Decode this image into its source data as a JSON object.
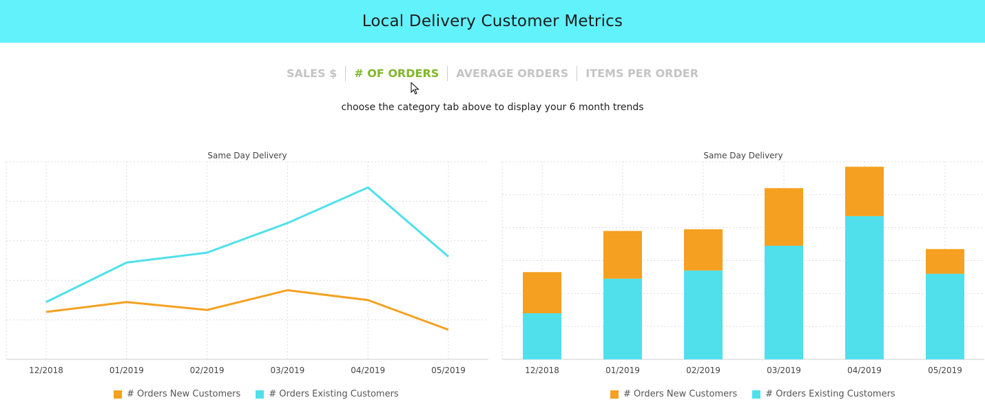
{
  "header": {
    "title": "Local Delivery Customer Metrics"
  },
  "tabs": [
    {
      "label": "SALES $",
      "active": false
    },
    {
      "label": "# OF ORDERS",
      "active": true
    },
    {
      "label": "AVERAGE ORDERS",
      "active": false
    },
    {
      "label": "ITEMS PER ORDER",
      "active": false
    }
  ],
  "hint": "choose the category tab above to display your 6 month trends",
  "colors": {
    "new": "#f5a020",
    "existing": "#4fe0ec",
    "active_tab": "#7fb82a",
    "header_bg": "#62f2fc"
  },
  "icons": {
    "cursor": "mouse-pointer-icon"
  },
  "chart_data": [
    {
      "type": "line",
      "title": "Same Day Delivery",
      "categories": [
        "12/2018",
        "01/2019",
        "02/2019",
        "03/2019",
        "04/2019",
        "05/2019"
      ],
      "series": [
        {
          "name": "# Orders New Customers",
          "values": [
            24,
            29,
            25,
            35,
            30,
            15
          ]
        },
        {
          "name": "# Orders Existing Customers",
          "values": [
            29,
            49,
            54,
            69,
            87,
            52
          ]
        }
      ],
      "ylim": [
        0,
        100
      ],
      "xlabel": "",
      "ylabel": "",
      "grid": true,
      "legend": "bottom"
    },
    {
      "type": "bar",
      "stacked": true,
      "title": "Same Day Delivery",
      "categories": [
        "12/2018",
        "01/2019",
        "02/2019",
        "03/2019",
        "04/2019",
        "05/2019"
      ],
      "series": [
        {
          "name": "# Orders Existing Customers",
          "values": [
            14,
            24.5,
            27,
            34.5,
            43.5,
            26
          ]
        },
        {
          "name": "# Orders New Customers",
          "values": [
            12.5,
            14.5,
            12.5,
            17.5,
            15,
            7.5
          ]
        }
      ],
      "ylim": [
        0,
        60
      ],
      "xlabel": "",
      "ylabel": "",
      "grid": true,
      "legend": "bottom"
    }
  ]
}
